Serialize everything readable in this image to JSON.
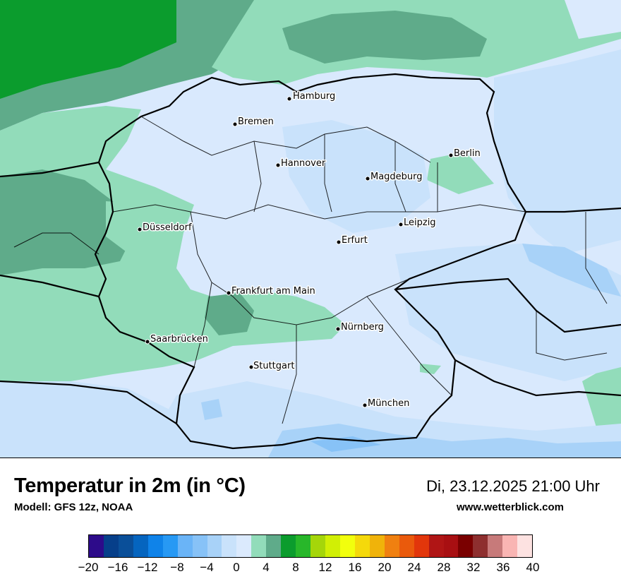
{
  "title": "Temperatur in 2m (in °C)",
  "model": "Modell: GFS 12z, NOAA",
  "datetime": "Di, 23.12.2025 21:00 Uhr",
  "website": "www.wetterblick.com",
  "cities": [
    {
      "name": "Hamburg",
      "label": "Hamburg"
    },
    {
      "name": "Bremen",
      "label": "Bremen"
    },
    {
      "name": "Berlin",
      "label": "Berlin"
    },
    {
      "name": "Hannover",
      "label": "Hannover"
    },
    {
      "name": "Magdeburg",
      "label": "Magdeburg"
    },
    {
      "name": "Düsseldorf",
      "label": "Düsseldorf"
    },
    {
      "name": "Leipzig",
      "label": "Leipzig"
    },
    {
      "name": "Erfurt",
      "label": "Erfurt"
    },
    {
      "name": "Frankfurt am Main",
      "label": "Frankfurt am Main"
    },
    {
      "name": "Nürnberg",
      "label": "Nürnberg"
    },
    {
      "name": "Saarbrücken",
      "label": "Saarbrücken"
    },
    {
      "name": "Stuttgart",
      "label": "Stuttgart"
    },
    {
      "name": "München",
      "label": "München"
    }
  ],
  "legend": {
    "ticks": [
      "−20",
      "−16",
      "−12",
      "−8",
      "−4",
      "0",
      "4",
      "8",
      "12",
      "16",
      "20",
      "24",
      "28",
      "32",
      "36",
      "40"
    ],
    "colors": [
      "#2d0b8a",
      "#063f8a",
      "#0a4f99",
      "#0565bf",
      "#0f83e9",
      "#2799f4",
      "#6ab4f7",
      "#87c2f7",
      "#a8d2f8",
      "#c9e2fb",
      "#dbeafd",
      "#92dcba",
      "#5fab8a",
      "#0b9c2d",
      "#28b72a",
      "#a5d60a",
      "#d1ef05",
      "#f2ff0d",
      "#f5d90b",
      "#f0b30a",
      "#f08010",
      "#ea5a0c",
      "#e2360b",
      "#b01515",
      "#a80f12",
      "#7a0000",
      "#8e2f2f",
      "#c77a7a",
      "#f9b5b3",
      "#fde2e1"
    ]
  }
}
